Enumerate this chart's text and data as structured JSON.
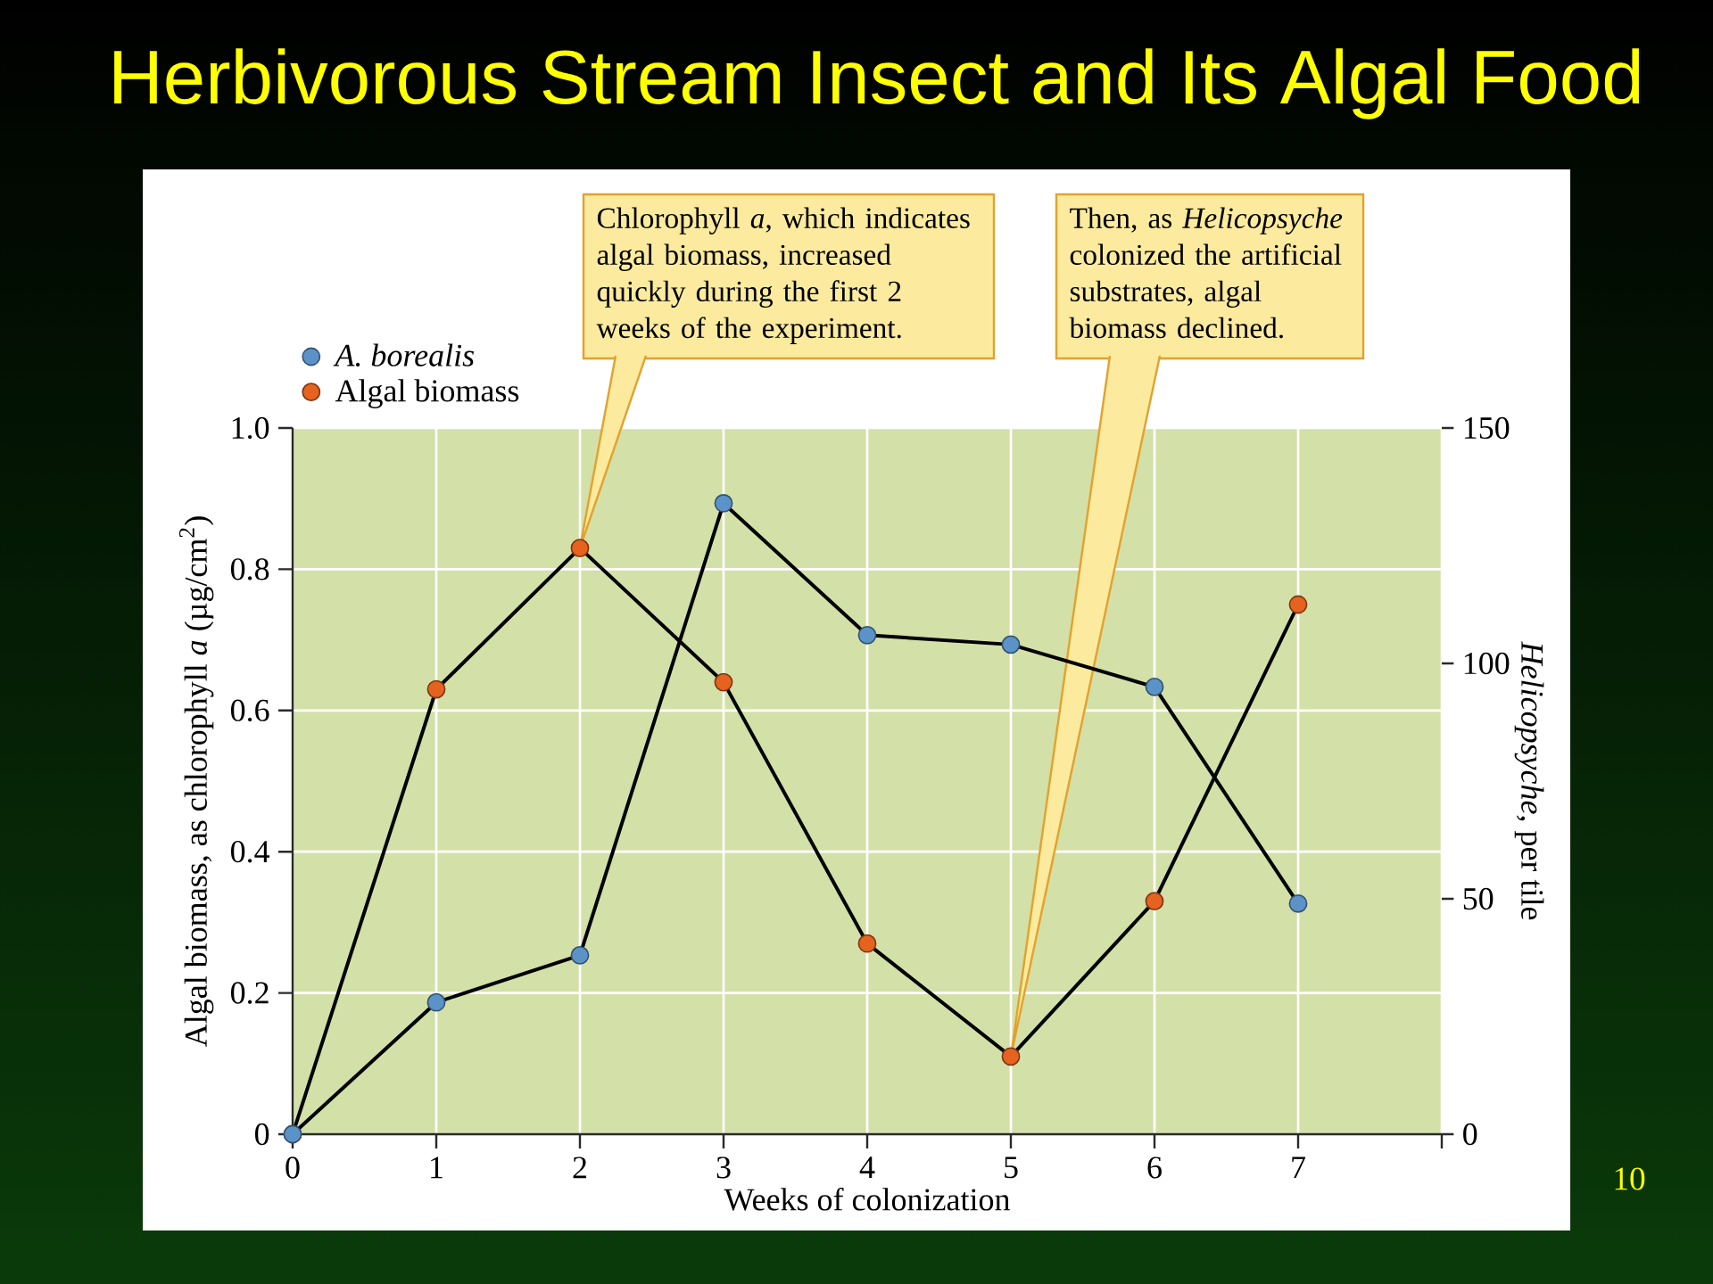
{
  "chart_data": {
    "type": "line",
    "title": "Herbivorous Stream Insect and Its Algal Food",
    "xlabel": "Weeks of colonization",
    "ylabel": "Algal biomass, as chlorophyll *a* (µg/cm$^{2}$)",
    "y2label": "*Helicopsyche*, per tile",
    "x": [
      0,
      1,
      2,
      3,
      4,
      5,
      6,
      7
    ],
    "series": [
      {
        "name": "A. borealis",
        "color": "#5b93c9",
        "axis": "y2",
        "values": [
          0,
          28,
          38,
          134,
          106,
          104,
          95,
          49
        ]
      },
      {
        "name": "Algal biomass",
        "color": "#e5621f",
        "values": [
          0,
          0.63,
          0.83,
          0.64,
          0.27,
          0.11,
          0.33,
          0.75
        ]
      }
    ],
    "xlim": [
      0,
      8
    ],
    "xticks": [
      0,
      1,
      2,
      3,
      4,
      5,
      6,
      7,
      {
        "value": 8,
        "label": null
      }
    ],
    "ylim": [
      0,
      1
    ],
    "yticks": [
      0,
      0.2,
      0.4,
      0.6,
      0.8,
      {
        "value": 1,
        "label": "1.0"
      }
    ],
    "y2lim": [
      0,
      150
    ],
    "y2ticks": [
      0,
      50,
      100,
      150
    ],
    "grid": true,
    "legend": "top left",
    "marker": "circle",
    "line_style": "solid",
    "annotations": [
      {
        "text": "Chlorophyll *a*, which indicates algal biomass, increased quickly during the first 2 weeks of the experiment.",
        "x": 2,
        "y": 0.83
      },
      {
        "text": "Then, as *Helicopsyche* colonized the artificial substrates, algal biomass declined.",
        "x": 5,
        "y": 0.11
      },
      "10"
    ]
  }
}
